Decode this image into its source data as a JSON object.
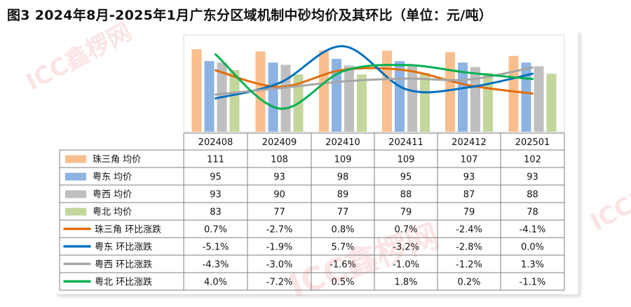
{
  "title": "图3 2024年8月-2025年1月广东分区域机制中砂均价及其环比（单位：元/吨）",
  "watermark": "ICC鑫椤网",
  "chart_data": {
    "type": "bar",
    "categories": [
      "202408",
      "202409",
      "202410",
      "202411",
      "202412",
      "202501"
    ],
    "bar_series": [
      {
        "name": "珠三角 均价",
        "color": "#f9bf8f",
        "values": [
          111,
          108,
          109,
          109,
          107,
          102
        ]
      },
      {
        "name": "粤东 均价",
        "color": "#8db3e2",
        "values": [
          95,
          93,
          98,
          95,
          93,
          93
        ]
      },
      {
        "name": "粤西 均价",
        "color": "#bfbfbf",
        "values": [
          93,
          90,
          89,
          88,
          87,
          88
        ]
      },
      {
        "name": "粤北 均价",
        "color": "#c3d69b",
        "values": [
          83,
          77,
          77,
          79,
          79,
          78
        ]
      }
    ],
    "line_series": [
      {
        "name": "珠三角 环比涨跌",
        "color": "#e36c0a",
        "values": [
          "0.7%",
          "-2.7%",
          "0.8%",
          "0.7%",
          "-2.4%",
          "-4.1%"
        ],
        "numeric": [
          0.7,
          -2.7,
          0.8,
          0.7,
          -2.4,
          -4.1
        ]
      },
      {
        "name": "粤东 环比涨跌",
        "color": "#0070c0",
        "values": [
          "-5.1%",
          "-1.9%",
          "5.7%",
          "-3.2%",
          "-2.8%",
          "0.0%"
        ],
        "numeric": [
          -5.1,
          -1.9,
          5.7,
          -3.2,
          -2.8,
          0.0
        ]
      },
      {
        "name": "粤西 环比涨跌",
        "color": "#a6a6a6",
        "values": [
          "-4.3%",
          "-3.0%",
          "-1.6%",
          "-1.0%",
          "-1.2%",
          "1.3%"
        ],
        "numeric": [
          -4.3,
          -3.0,
          -1.6,
          -1.0,
          -1.2,
          1.3
        ]
      },
      {
        "name": "粤北 环比涨跌",
        "color": "#00b050",
        "values": [
          "4.0%",
          "-7.2%",
          "0.5%",
          "1.8%",
          "0.2%",
          "-1.1%"
        ],
        "numeric": [
          4.0,
          -7.2,
          0.5,
          1.8,
          0.2,
          -1.1
        ]
      }
    ],
    "bar_ylim": [
      0,
      130
    ],
    "line_ylim": [
      -12,
      8
    ],
    "grid": false,
    "legend": "data-table"
  }
}
